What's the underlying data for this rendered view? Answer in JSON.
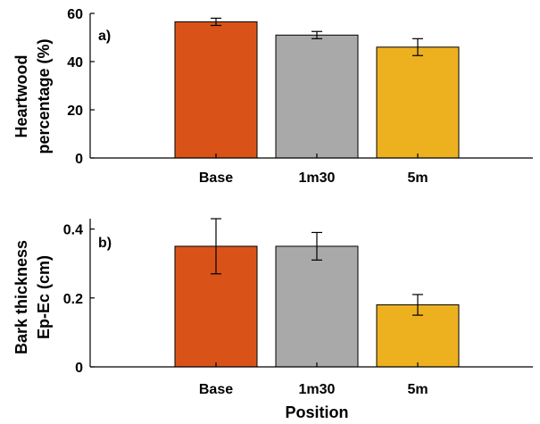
{
  "chart_data": [
    {
      "type": "bar",
      "panel_label": "a)",
      "categories": [
        "Base",
        "1m30",
        "5m"
      ],
      "values": [
        56.5,
        51,
        46
      ],
      "error": [
        1.5,
        1.5,
        3.5
      ],
      "ylabel_lines": [
        "Heartwood",
        "percentage  (%)"
      ],
      "xlabel": "",
      "ylim": [
        0,
        60
      ],
      "yticks": [
        0,
        20,
        40,
        60
      ],
      "ytick_labels": [
        "0",
        "20",
        "40",
        "60"
      ],
      "grid": false,
      "colors": [
        "#D95319",
        "#A9A9A9",
        "#EDB120"
      ]
    },
    {
      "type": "bar",
      "panel_label": "b)",
      "categories": [
        "Base",
        "1m30",
        "5m"
      ],
      "values": [
        0.35,
        0.35,
        0.18
      ],
      "error": [
        0.08,
        0.04,
        0.03
      ],
      "ylabel_lines": [
        "Bark thickness",
        "Ep-Ec (cm)"
      ],
      "xlabel": "Position",
      "ylim": [
        0,
        0.43
      ],
      "yticks": [
        0,
        0.2,
        0.4
      ],
      "ytick_labels": [
        "0",
        "0.2",
        "0.4"
      ],
      "grid": false,
      "colors": [
        "#D95319",
        "#A9A9A9",
        "#EDB120"
      ]
    }
  ]
}
